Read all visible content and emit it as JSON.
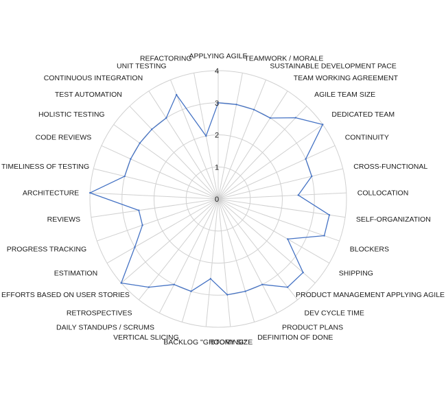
{
  "chart_data": {
    "type": "radar",
    "categories": [
      "APPLYING AGILE",
      "TEAMWORK / MORALE",
      "SUSTAINABLE DEVELOPMENT PACE",
      "TEAM WORKING AGREEMENT",
      "AGILE TEAM SIZE",
      "DEDICATED TEAM",
      "CONTINUITY",
      "CROSS-FUNCTIONAL",
      "COLLOCATION",
      "SELF-ORGANIZATION",
      "BLOCKERS",
      "SHIPPING",
      "PRODUCT MANAGEMENT APPLYING AGILE",
      "DEV CYCLE TIME",
      "PRODUCT PLANS",
      "DEFINITION OF DONE",
      "STORY SIZE",
      "BACKLOG \"GROOMING\"",
      "VERTICAL SLICING",
      "DAILY STANDUPS / SCRUMS",
      "RETROSPECTIVES",
      "EFFORTS BASED ON USER STORIES",
      "ESTIMATION",
      "PROGRESS TRACKING",
      "REVIEWS",
      "ARCHITECTURE",
      "TIMELINESS OF TESTING",
      "CODE REVIEWS",
      "HOLISTIC TESTING",
      "TEST AUTOMATION",
      "CONTINUOUS INTEGRATION",
      "UNIT TESTING",
      "REFACTORING"
    ],
    "values": [
      3,
      3,
      3,
      3,
      3.5,
      4,
      3,
      3,
      2.5,
      3.5,
      3.5,
      2.5,
      3.5,
      3.5,
      3,
      3,
      3,
      2.5,
      3,
      3,
      3.5,
      4,
      3,
      2.5,
      2.5,
      4,
      3,
      3,
      3,
      3,
      3,
      3.5,
      2
    ],
    "rlim": [
      0,
      4
    ],
    "ticks": [
      "0",
      "1",
      "2",
      "3",
      "4"
    ],
    "grid": true,
    "legend": false,
    "series_color": "#4472c4"
  }
}
